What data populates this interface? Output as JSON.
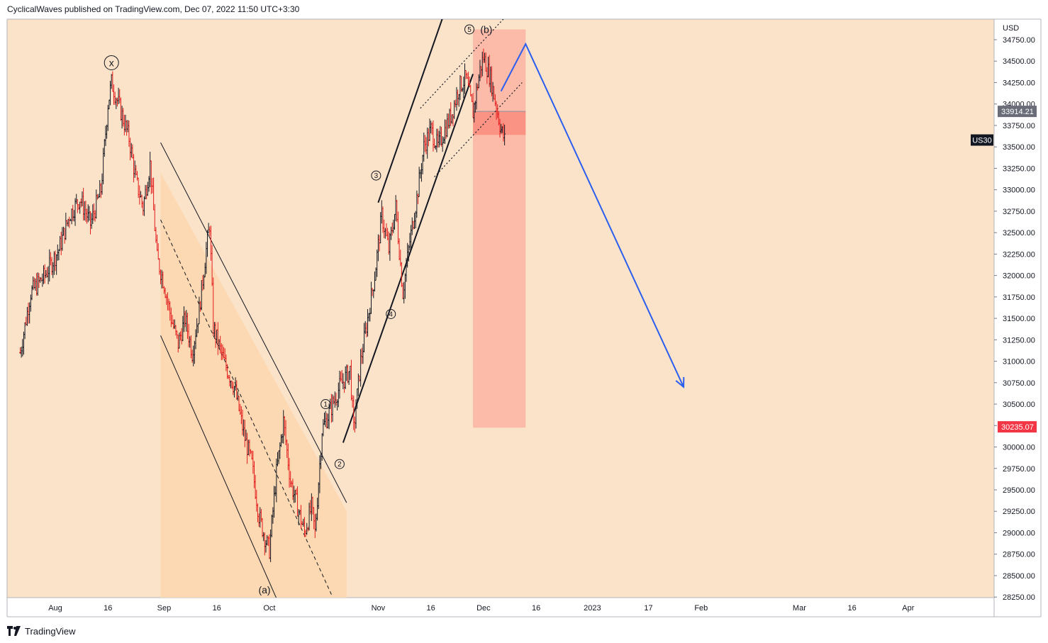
{
  "header": {
    "author": "CyclicalWaves",
    "published_text": "published on TradingView.com, Dec 07, 2022 11:50 UTC+3:30"
  },
  "footer": {
    "logo_text": "TradingView",
    "logo_icon": "tradingview-logo-icon"
  },
  "colors": {
    "background": "#fbe3c9",
    "channel_fill": "#fbd7ae",
    "target_box": "#fcb6a4",
    "target_box_dark": "#fa8f80",
    "arrow": "#2a5ef0",
    "candle_up": "#131722",
    "candle_down": "#e31d1d",
    "price_tag": "#f23645",
    "axis_text": "#131722"
  },
  "chart_data": {
    "type": "candlestick",
    "symbol": "US30",
    "currency": "USD",
    "last_price": "33914.21",
    "price_tag_marker": "30235.07",
    "ylim": [
      28250,
      34750
    ],
    "y_ticks": [
      "34750.00",
      "34500.00",
      "34250.00",
      "34000.00",
      "33750.00",
      "33500.00",
      "33250.00",
      "33000.00",
      "32750.00",
      "32500.00",
      "32250.00",
      "32000.00",
      "31750.00",
      "31500.00",
      "31250.00",
      "31000.00",
      "30750.00",
      "30500.00",
      "30250.00",
      "30000.00",
      "29750.00",
      "29500.00",
      "29250.00",
      "29000.00",
      "28750.00",
      "28500.00",
      "28250.00"
    ],
    "x_ticks": [
      {
        "label": "Aug",
        "date": "2022-08-01"
      },
      {
        "label": "16",
        "date": "2022-08-16"
      },
      {
        "label": "Sep",
        "date": "2022-09-01"
      },
      {
        "label": "16",
        "date": "2022-09-16"
      },
      {
        "label": "Oct",
        "date": "2022-10-01"
      },
      {
        "label": "Nov",
        "date": "2022-11-01"
      },
      {
        "label": "16",
        "date": "2022-11-16"
      },
      {
        "label": "Dec",
        "date": "2022-12-01"
      },
      {
        "label": "16",
        "date": "2022-12-16"
      },
      {
        "label": "2023",
        "date": "2023-01-01"
      },
      {
        "label": "17",
        "date": "2023-01-17"
      },
      {
        "label": "Feb",
        "date": "2023-02-01"
      },
      {
        "label": "Mar",
        "date": "2023-03-01"
      },
      {
        "label": "16",
        "date": "2023-03-16"
      },
      {
        "label": "Apr",
        "date": "2023-04-01"
      }
    ],
    "price_path": [
      [
        "2022-07-22",
        31100
      ],
      [
        "2022-07-25",
        31800
      ],
      [
        "2022-07-29",
        32000
      ],
      [
        "2022-08-02",
        32300
      ],
      [
        "2022-08-05",
        32700
      ],
      [
        "2022-08-08",
        32900
      ],
      [
        "2022-08-11",
        32600
      ],
      [
        "2022-08-14",
        33000
      ],
      [
        "2022-08-16",
        34000
      ],
      [
        "2022-08-17",
        34250
      ],
      [
        "2022-08-19",
        34000
      ],
      [
        "2022-08-22",
        33600
      ],
      [
        "2022-08-24",
        33100
      ],
      [
        "2022-08-26",
        32800
      ],
      [
        "2022-08-28",
        33300
      ],
      [
        "2022-08-30",
        32200
      ],
      [
        "2022-09-01",
        31900
      ],
      [
        "2022-09-03",
        31500
      ],
      [
        "2022-09-05",
        31200
      ],
      [
        "2022-09-07",
        31500
      ],
      [
        "2022-09-09",
        31100
      ],
      [
        "2022-09-11",
        31600
      ],
      [
        "2022-09-13",
        32300
      ],
      [
        "2022-09-14",
        32600
      ],
      [
        "2022-09-15",
        31400
      ],
      [
        "2022-09-18",
        31000
      ],
      [
        "2022-09-21",
        30700
      ],
      [
        "2022-09-24",
        30100
      ],
      [
        "2022-09-26",
        29800
      ],
      [
        "2022-09-28",
        29200
      ],
      [
        "2022-09-30",
        28900
      ],
      [
        "2022-10-01",
        28800
      ],
      [
        "2022-10-03",
        29700
      ],
      [
        "2022-10-05",
        30300
      ],
      [
        "2022-10-07",
        29600
      ],
      [
        "2022-10-09",
        29300
      ],
      [
        "2022-10-11",
        29000
      ],
      [
        "2022-10-13",
        29300
      ],
      [
        "2022-10-14",
        29000
      ],
      [
        "2022-10-16",
        30200
      ],
      [
        "2022-10-19",
        30500
      ],
      [
        "2022-10-21",
        30700
      ],
      [
        "2022-10-24",
        30900
      ],
      [
        "2022-10-25",
        30200
      ],
      [
        "2022-10-27",
        31000
      ],
      [
        "2022-10-29",
        31500
      ],
      [
        "2022-10-31",
        32000
      ],
      [
        "2022-11-02",
        32700
      ],
      [
        "2022-11-04",
        32300
      ],
      [
        "2022-11-06",
        32800
      ],
      [
        "2022-11-08",
        31800
      ],
      [
        "2022-11-10",
        32400
      ],
      [
        "2022-11-12",
        32900
      ],
      [
        "2022-11-14",
        33500
      ],
      [
        "2022-11-16",
        33700
      ],
      [
        "2022-11-18",
        33500
      ],
      [
        "2022-11-20",
        33700
      ],
      [
        "2022-11-22",
        33900
      ],
      [
        "2022-11-24",
        34200
      ],
      [
        "2022-11-26",
        34300
      ],
      [
        "2022-11-28",
        33900
      ],
      [
        "2022-11-30",
        34400
      ],
      [
        "2022-12-01",
        34550
      ],
      [
        "2022-12-03",
        34300
      ],
      [
        "2022-12-05",
        33900
      ],
      [
        "2022-12-06",
        33700
      ],
      [
        "2022-12-07",
        33580
      ]
    ],
    "projection": [
      [
        "2022-12-06",
        34150
      ],
      [
        "2022-12-13",
        34700
      ],
      [
        "2023-01-27",
        30700
      ]
    ],
    "waves": [
      {
        "label": "x",
        "date": "2022-08-17",
        "price": 34250,
        "circled": true
      },
      {
        "label": "(a)",
        "date": "2022-09-30",
        "price": 28400,
        "circled": false
      },
      {
        "label": "1",
        "date": "2022-10-17",
        "price": 30500,
        "circled": true
      },
      {
        "label": "2",
        "date": "2022-10-22",
        "price": 29900,
        "circled": true
      },
      {
        "label": "3",
        "date": "2022-11-01",
        "price": 33100,
        "circled": true
      },
      {
        "label": "4",
        "date": "2022-11-05",
        "price": 31650,
        "circled": true
      },
      {
        "label": "5",
        "date": "2022-11-29",
        "price": 34870,
        "circled": true
      },
      {
        "label": "(b)",
        "date": "2022-12-01",
        "price": 34870,
        "circled": false
      }
    ],
    "grid": false,
    "legend": "none"
  }
}
